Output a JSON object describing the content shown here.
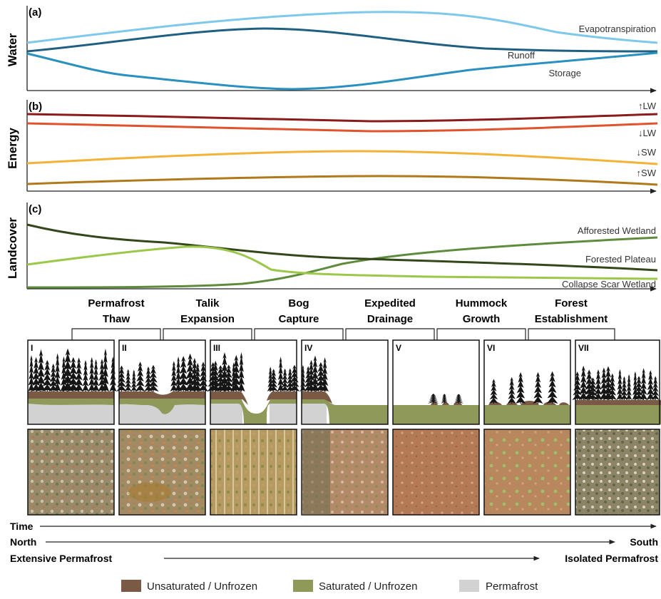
{
  "panels": {
    "water": {
      "letter": "(a)",
      "ylabel": "Water",
      "series": [
        {
          "name": "Evapotranspiration",
          "color": "#7ec8ec"
        },
        {
          "name": "Runoff",
          "color": "#1f5f82"
        },
        {
          "name": "Storage",
          "color": "#2a90bf"
        }
      ]
    },
    "energy": {
      "letter": "(b)",
      "ylabel": "Energy",
      "series": [
        {
          "name": "↑LW",
          "color": "#8b1a1a"
        },
        {
          "name": "↓LW",
          "color": "#e0532c"
        },
        {
          "name": "↓SW",
          "color": "#f2b336"
        },
        {
          "name": "↑SW",
          "color": "#b07a1c"
        }
      ]
    },
    "landcover": {
      "letter": "(c)",
      "ylabel": "Landcover",
      "series": [
        {
          "name": "Afforested Wetland",
          "color": "#5e8c3c"
        },
        {
          "name": "Forested Plateau",
          "color": "#33471a"
        },
        {
          "name": "Collapse Scar Wetland",
          "color": "#9cc84a"
        }
      ]
    }
  },
  "stages": [
    {
      "title_line1": "Permafrost",
      "title_line2": "Thaw"
    },
    {
      "title_line1": "Talik",
      "title_line2": "Expansion"
    },
    {
      "title_line1": "Bog",
      "title_line2": "Capture"
    },
    {
      "title_line1": "Expedited",
      "title_line2": "Drainage"
    },
    {
      "title_line1": "Hummock",
      "title_line2": "Growth"
    },
    {
      "title_line1": "Forest",
      "title_line2": "Establishment"
    }
  ],
  "roman": [
    "I",
    "II",
    "III",
    "IV",
    "V",
    "VI",
    "VII"
  ],
  "axes": {
    "time": "Time",
    "north": "North",
    "south": "South",
    "extensive": "Extensive Permafrost",
    "isolated": "Isolated Permafrost"
  },
  "legend": [
    {
      "label": "Unsaturated / Unfrozen",
      "color": "#7a5a44"
    },
    {
      "label": "Saturated / Unfrozen",
      "color": "#8f9a5a"
    },
    {
      "label": "Permafrost",
      "color": "#d2d2d2"
    }
  ]
}
